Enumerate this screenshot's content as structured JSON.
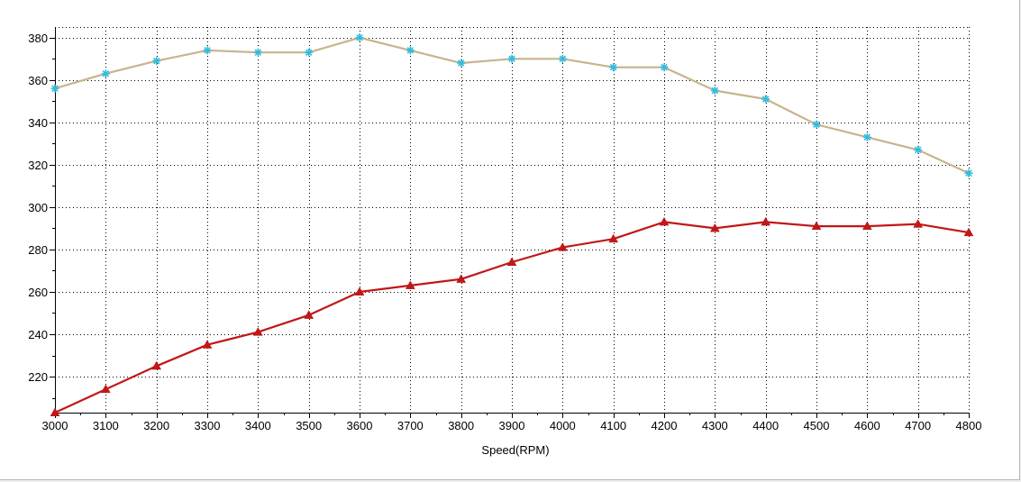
{
  "chart_data": {
    "type": "line",
    "xlabel": "Speed(RPM)",
    "ylabel": "",
    "xlim": [
      3000,
      4800
    ],
    "ylim": [
      203,
      385
    ],
    "x_ticks": [
      3000,
      3100,
      3200,
      3300,
      3400,
      3500,
      3600,
      3700,
      3800,
      3900,
      4000,
      4100,
      4200,
      4300,
      4400,
      4500,
      4600,
      4700,
      4800
    ],
    "y_ticks": [
      220,
      240,
      260,
      280,
      300,
      320,
      340,
      360,
      380
    ],
    "grid": true,
    "x": [
      3000,
      3100,
      3200,
      3300,
      3400,
      3500,
      3600,
      3700,
      3800,
      3900,
      4000,
      4100,
      4200,
      4300,
      4400,
      4500,
      4600,
      4700,
      4800
    ],
    "series": [
      {
        "line_color": "#c8b48c",
        "marker_color": "#33bbdd",
        "marker": "star",
        "values": [
          356,
          363,
          369,
          374,
          373,
          373,
          380,
          374,
          368,
          370,
          370,
          366,
          366,
          355,
          351,
          339,
          333,
          327,
          316
        ]
      },
      {
        "line_color": "#c01818",
        "marker_color": "#c01818",
        "marker": "triangle",
        "values": [
          203,
          214,
          225,
          235,
          241,
          249,
          260,
          263,
          266,
          274,
          281,
          285,
          293,
          290,
          293,
          291,
          291,
          292,
          288
        ]
      }
    ]
  }
}
